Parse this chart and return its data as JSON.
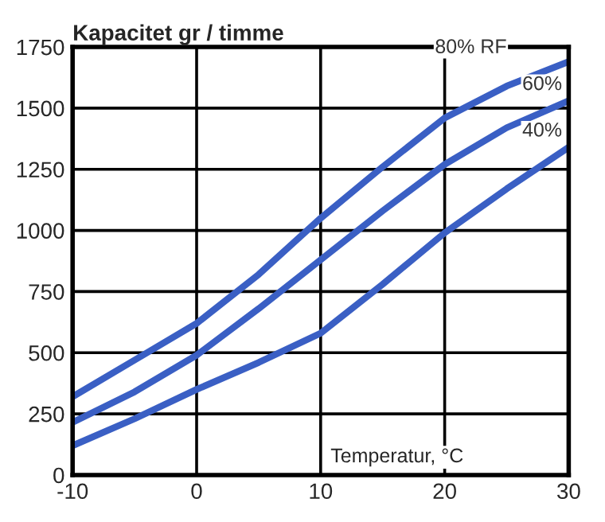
{
  "chart_data": {
    "type": "line",
    "title": "Kapacitet gr / timme",
    "xlabel": "Temperatur, °C",
    "x": [
      -10,
      -5,
      0,
      5,
      10,
      15,
      20,
      25,
      30
    ],
    "series": [
      {
        "name": "80% RF",
        "color": "#3a5fc4",
        "values": [
          320,
          470,
          620,
          820,
          1050,
          1260,
          1460,
          1590,
          1690
        ]
      },
      {
        "name": "60%",
        "color": "#3a5fc4",
        "values": [
          215,
          340,
          490,
          680,
          880,
          1080,
          1270,
          1420,
          1530
        ]
      },
      {
        "name": "40%",
        "color": "#3a5fc4",
        "values": [
          120,
          230,
          350,
          460,
          580,
          780,
          990,
          1170,
          1340
        ]
      }
    ],
    "xlim": [
      -10,
      30
    ],
    "xticks": [
      -10,
      0,
      10,
      20,
      30
    ],
    "ylim": [
      0,
      1750
    ],
    "yticks": [
      0,
      250,
      500,
      750,
      1000,
      1250,
      1500,
      1750
    ],
    "grid": true,
    "legend": false,
    "marker": "none",
    "line_style": "solid"
  }
}
